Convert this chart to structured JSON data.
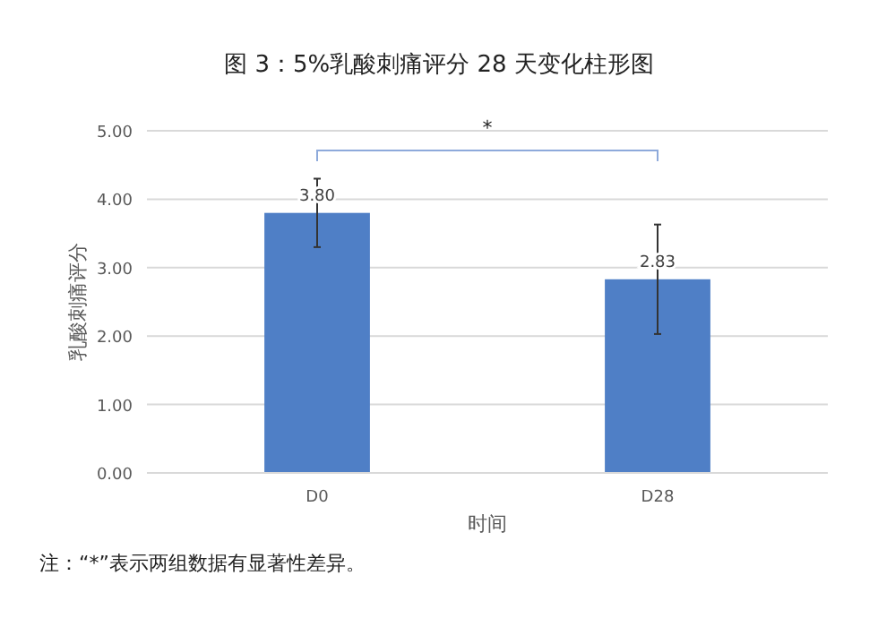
{
  "chart_data": {
    "type": "bar",
    "title": "图 3：5%乳酸刺痛评分 28 天变化柱形图",
    "xlabel": "时间",
    "ylabel": "乳酸刺痛评分",
    "categories": [
      "D0",
      "D28"
    ],
    "values": [
      3.8,
      2.83
    ],
    "color": "#4f7fc6",
    "errors": [
      0.5,
      0.8
    ],
    "value_labels": [
      "3.80",
      "2.83"
    ],
    "ylim": [
      0,
      5
    ],
    "yticks": [
      {
        "value": 0,
        "label": "0.00"
      },
      {
        "value": 1,
        "label": "1.00"
      },
      {
        "value": 2,
        "label": "2.00"
      },
      {
        "value": 3,
        "label": "3.00"
      },
      {
        "value": 4,
        "label": "4.00"
      },
      {
        "value": 5,
        "label": "5.00"
      }
    ],
    "grid": "y",
    "annotations": [
      "*",
      "注：“*”表示两组数据有显著性差异。"
    ]
  }
}
